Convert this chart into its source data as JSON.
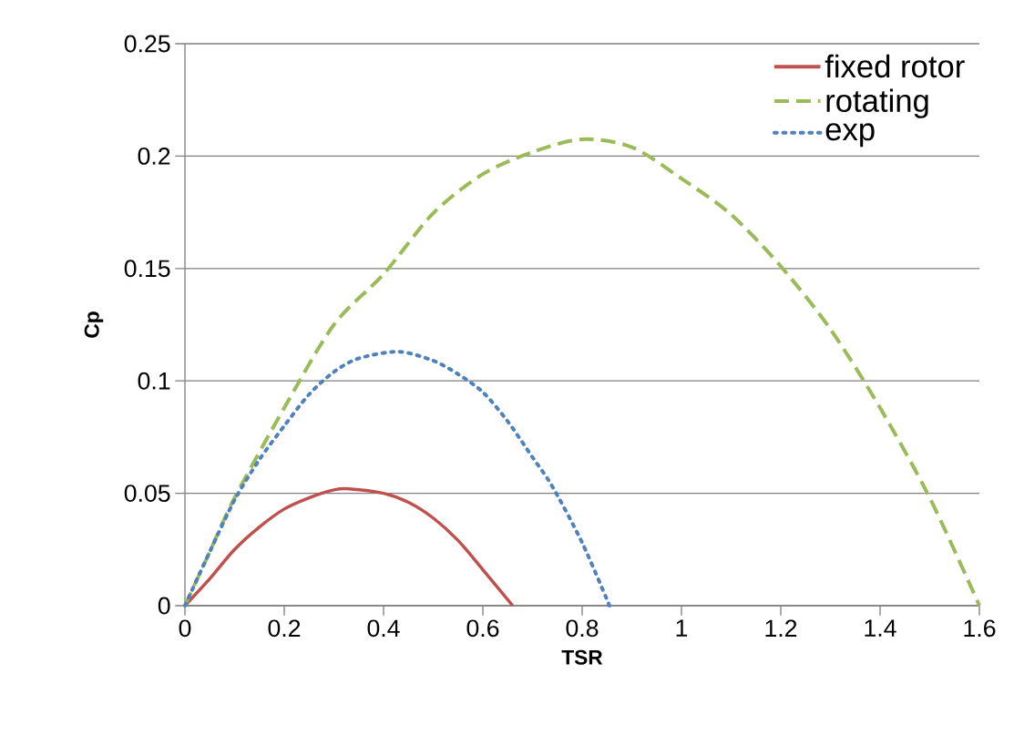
{
  "chart_data": {
    "type": "line",
    "xlabel": "TSR",
    "ylabel": "Cp",
    "xlim": [
      0,
      1.6
    ],
    "ylim": [
      0,
      0.25
    ],
    "xticks": [
      0,
      0.2,
      0.4,
      0.6,
      0.8,
      1,
      1.2,
      1.4,
      1.6
    ],
    "yticks": [
      0,
      0.05,
      0.1,
      0.15,
      0.2,
      0.25
    ],
    "grid": "y",
    "legend": "top right",
    "marker": "none",
    "series": [
      {
        "name": "fixed rotor",
        "color": "#c0504d",
        "line_style": "solid",
        "x": [
          0,
          0.05,
          0.1,
          0.15,
          0.2,
          0.25,
          0.3,
          0.33,
          0.4,
          0.45,
          0.5,
          0.55,
          0.6,
          0.66
        ],
        "values": [
          0,
          0.012,
          0.025,
          0.035,
          0.043,
          0.048,
          0.0515,
          0.052,
          0.05,
          0.046,
          0.039,
          0.029,
          0.016,
          0
        ]
      },
      {
        "name": "rotating",
        "color": "#9bbb59",
        "line_style": "dashed",
        "x": [
          0,
          0.05,
          0.1,
          0.2,
          0.3,
          0.4,
          0.5,
          0.6,
          0.7,
          0.8,
          0.9,
          1,
          1.1,
          1.2,
          1.3,
          1.4,
          1.5,
          1.6
        ],
        "values": [
          0,
          0.024,
          0.048,
          0.088,
          0.125,
          0.1475,
          0.1746,
          0.192,
          0.2018,
          0.2075,
          0.204,
          0.19,
          0.174,
          0.151,
          0.123,
          0.088,
          0.048,
          0
        ]
      },
      {
        "name": "exp",
        "color": "#4f81bd",
        "line_style": "dotted",
        "x": [
          0,
          0.05,
          0.1,
          0.15,
          0.2,
          0.25,
          0.3,
          0.35,
          0.43,
          0.5,
          0.55,
          0.6,
          0.65,
          0.7,
          0.74,
          0.8,
          0.855
        ],
        "values": [
          0,
          0.024,
          0.047,
          0.065,
          0.08,
          0.094,
          0.104,
          0.11,
          0.113,
          0.109,
          0.103,
          0.095,
          0.082,
          0.066,
          0.053,
          0.028,
          0
        ]
      }
    ]
  }
}
